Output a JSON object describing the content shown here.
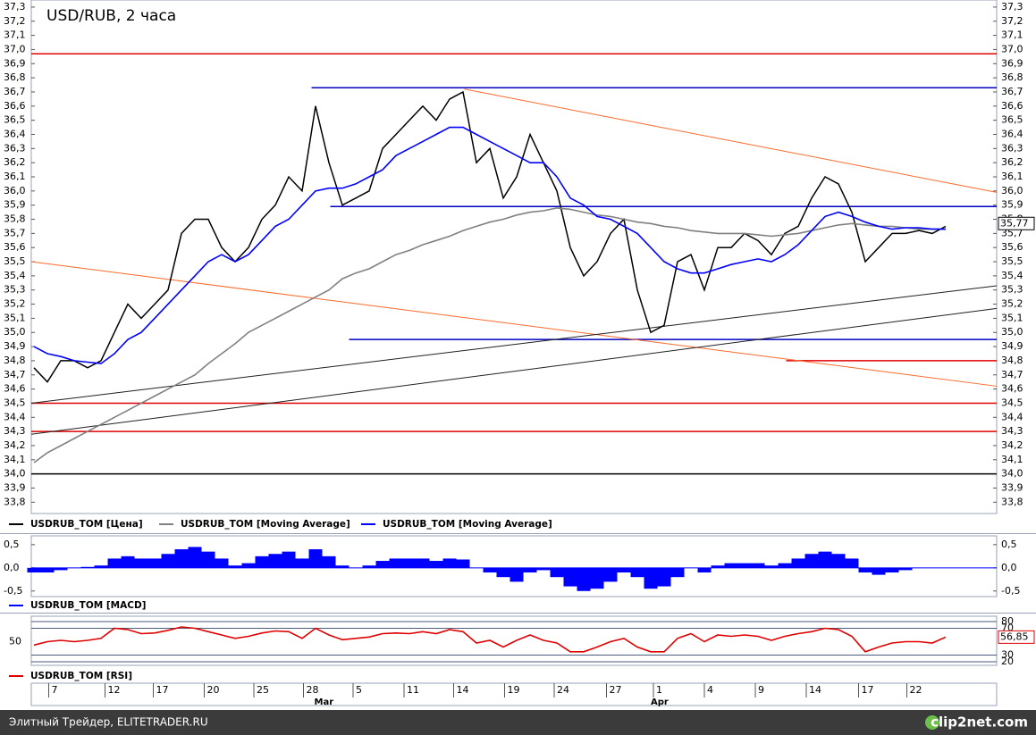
{
  "chart_data": [
    {
      "type": "line",
      "title": "USD/RUB, 2 часа",
      "xlim": [
        -0.2,
        71.8
      ],
      "ylim": [
        33.72,
        37.35
      ],
      "yticks": [
        {
          "value": 33.8,
          "label": "33,8"
        },
        {
          "value": 33.9,
          "label": "33,9"
        },
        {
          "value": 34.0,
          "label": "34,0"
        },
        {
          "value": 34.1,
          "label": "34,1"
        },
        {
          "value": 34.2,
          "label": "34,2"
        },
        {
          "value": 34.3,
          "label": "34,3"
        },
        {
          "value": 34.4,
          "label": "34,4"
        },
        {
          "value": 34.5,
          "label": "34,5"
        },
        {
          "value": 34.6,
          "label": "34,6"
        },
        {
          "value": 34.7,
          "label": "34,7"
        },
        {
          "value": 34.8,
          "label": "34,8"
        },
        {
          "value": 34.9,
          "label": "34,9"
        },
        {
          "value": 35.0,
          "label": "35,0"
        },
        {
          "value": 35.1,
          "label": "35,1"
        },
        {
          "value": 35.2,
          "label": "35,2"
        },
        {
          "value": 35.3,
          "label": "35,3"
        },
        {
          "value": 35.4,
          "label": "35,4"
        },
        {
          "value": 35.5,
          "label": "35,5"
        },
        {
          "value": 35.6,
          "label": "35,6"
        },
        {
          "value": 35.7,
          "label": "35,7"
        },
        {
          "value": 35.8,
          "label": "35,8"
        },
        {
          "value": 35.9,
          "label": "35,9"
        },
        {
          "value": 36.0,
          "label": "36,0"
        },
        {
          "value": 36.1,
          "label": "36,1"
        },
        {
          "value": 36.2,
          "label": "36,2"
        },
        {
          "value": 36.3,
          "label": "36,3"
        },
        {
          "value": 36.4,
          "label": "36,4"
        },
        {
          "value": 36.5,
          "label": "36,5"
        },
        {
          "value": 36.6,
          "label": "36,6"
        },
        {
          "value": 36.7,
          "label": "36,7"
        },
        {
          "value": 36.8,
          "label": "36,8"
        },
        {
          "value": 36.9,
          "label": "36,9"
        },
        {
          "value": 37.0,
          "label": "37,0"
        },
        {
          "value": 37.1,
          "label": "37,1"
        },
        {
          "value": 37.2,
          "label": "37,2"
        },
        {
          "value": 37.3,
          "label": "37,3"
        }
      ],
      "series": [
        {
          "name": "USDRUB_TOM [Цена]",
          "color": "#000000",
          "values": [
            34.75,
            34.65,
            34.8,
            34.8,
            34.75,
            34.8,
            35.0,
            35.2,
            35.1,
            35.2,
            35.3,
            35.7,
            35.8,
            35.8,
            35.6,
            35.5,
            35.6,
            35.8,
            35.9,
            36.1,
            36.0,
            36.6,
            36.2,
            35.9,
            35.95,
            36.0,
            36.3,
            36.4,
            36.5,
            36.6,
            36.5,
            36.65,
            36.7,
            36.2,
            36.3,
            35.95,
            36.1,
            36.4,
            36.2,
            36.0,
            35.6,
            35.4,
            35.5,
            35.7,
            35.8,
            35.3,
            35.0,
            35.05,
            35.5,
            35.55,
            35.3,
            35.6,
            35.6,
            35.7,
            35.65,
            35.55,
            35.7,
            35.75,
            35.95,
            36.1,
            36.05,
            35.85,
            35.5,
            35.6,
            35.7,
            35.7,
            35.72,
            35.7,
            35.75
          ]
        },
        {
          "name": "USDRUB_TOM [Moving Average]",
          "color": "#808080",
          "values": [
            34.08,
            34.15,
            34.2,
            34.25,
            34.3,
            34.35,
            34.4,
            34.45,
            34.5,
            34.55,
            34.6,
            34.65,
            34.7,
            34.78,
            34.85,
            34.92,
            35.0,
            35.05,
            35.1,
            35.15,
            35.2,
            35.25,
            35.3,
            35.38,
            35.42,
            35.45,
            35.5,
            35.55,
            35.58,
            35.62,
            35.65,
            35.68,
            35.72,
            35.75,
            35.78,
            35.8,
            35.83,
            35.85,
            35.86,
            35.88,
            35.87,
            35.85,
            35.83,
            35.82,
            35.8,
            35.78,
            35.77,
            35.75,
            35.74,
            35.72,
            35.71,
            35.7,
            35.7,
            35.7,
            35.69,
            35.68,
            35.69,
            35.7,
            35.72,
            35.74,
            35.76,
            35.77,
            35.76,
            35.75,
            35.75,
            35.74,
            35.73,
            35.73,
            35.73
          ]
        },
        {
          "name": "USDRUB_TOM [Moving Average]",
          "color": "#0000ff",
          "values": [
            34.9,
            34.85,
            34.83,
            34.8,
            34.79,
            34.78,
            34.85,
            34.95,
            35.0,
            35.1,
            35.2,
            35.3,
            35.4,
            35.5,
            35.55,
            35.5,
            35.55,
            35.65,
            35.75,
            35.8,
            35.9,
            36.0,
            36.02,
            36.02,
            36.05,
            36.1,
            36.15,
            36.25,
            36.3,
            36.35,
            36.4,
            36.45,
            36.45,
            36.4,
            36.35,
            36.3,
            36.25,
            36.2,
            36.2,
            36.1,
            35.95,
            35.9,
            35.82,
            35.8,
            35.75,
            35.7,
            35.6,
            35.5,
            35.45,
            35.42,
            35.42,
            35.45,
            35.48,
            35.5,
            35.52,
            35.5,
            35.55,
            35.62,
            35.72,
            35.82,
            35.85,
            35.82,
            35.78,
            35.75,
            35.73,
            35.74,
            35.74,
            35.73,
            35.73
          ]
        }
      ],
      "last_label": {
        "value": 35.77,
        "label": "35,77"
      },
      "levels": [
        {
          "value": 36.97,
          "color": "#e00000",
          "from": -0.2
        },
        {
          "value": 36.73,
          "color": "#0000c0",
          "from": 20.7
        },
        {
          "value": 35.89,
          "color": "#0000c0",
          "from": 22.1
        },
        {
          "value": 34.95,
          "color": "#0000c0",
          "from": 23.5
        },
        {
          "value": 34.8,
          "color": "#e00000",
          "from": 56.1
        },
        {
          "value": 34.5,
          "color": "#e00000",
          "from": -0.2
        },
        {
          "value": 34.3,
          "color": "#e00000",
          "from": -0.2
        },
        {
          "value": 34.0,
          "color": "#000000",
          "from": -0.2
        }
      ],
      "trend_lines": [
        {
          "x": [
            -0.2,
            71.8
          ],
          "y": [
            35.5,
            34.62
          ],
          "color": "#ff6a2a"
        },
        {
          "x": [
            32.1,
            71.8
          ],
          "y": [
            36.72,
            35.99
          ],
          "color": "#ff6a2a"
        },
        {
          "x": [
            -0.2,
            71.8
          ],
          "y": [
            34.5,
            35.33
          ],
          "color": "#202020"
        },
        {
          "x": [
            -0.2,
            71.8
          ],
          "y": [
            34.28,
            35.17
          ],
          "color": "#202020"
        }
      ]
    },
    {
      "type": "bar",
      "xlim": [
        -0.2,
        71.8
      ],
      "ylim": [
        -0.62,
        0.69
      ],
      "yticks": [
        {
          "value": 0.5,
          "label": "0,5"
        },
        {
          "value": 0,
          "label": "0,0"
        },
        {
          "value": -0.5,
          "label": "-0,5"
        }
      ],
      "series": [
        {
          "name": "USDRUB_TOM [MACD]",
          "color": "#0000ff",
          "values": [
            -0.1,
            -0.1,
            -0.05,
            0.0,
            0.02,
            0.05,
            0.2,
            0.25,
            0.2,
            0.2,
            0.3,
            0.4,
            0.45,
            0.35,
            0.2,
            0.05,
            0.1,
            0.25,
            0.3,
            0.35,
            0.2,
            0.4,
            0.25,
            0.05,
            0.0,
            0.05,
            0.15,
            0.2,
            0.2,
            0.2,
            0.15,
            0.2,
            0.18,
            0.0,
            -0.1,
            -0.2,
            -0.3,
            -0.1,
            -0.05,
            -0.2,
            -0.4,
            -0.5,
            -0.45,
            -0.3,
            -0.1,
            -0.2,
            -0.45,
            -0.4,
            -0.2,
            0.0,
            -0.1,
            0.05,
            0.1,
            0.1,
            0.1,
            0.05,
            0.1,
            0.2,
            0.3,
            0.35,
            0.3,
            0.2,
            -0.1,
            -0.15,
            -0.1,
            -0.05,
            0.0,
            0.0,
            0.0
          ]
        }
      ]
    },
    {
      "type": "line",
      "xlim": [
        -0.2,
        71.8
      ],
      "ylim": [
        14.7,
        88
      ],
      "yticks": [
        20,
        30,
        70,
        80
      ],
      "center_tick": 50,
      "series": [
        {
          "name": "USDRUB_TOM [RSI]",
          "color": "#e00000",
          "values": [
            45,
            50,
            52,
            50,
            52,
            55,
            70,
            68,
            62,
            63,
            67,
            72,
            70,
            65,
            60,
            55,
            58,
            63,
            66,
            65,
            55,
            70,
            60,
            53,
            55,
            57,
            62,
            63,
            62,
            65,
            62,
            68,
            65,
            48,
            52,
            42,
            52,
            60,
            52,
            48,
            35,
            35,
            42,
            50,
            55,
            42,
            35,
            35,
            55,
            62,
            50,
            60,
            58,
            60,
            58,
            52,
            58,
            62,
            65,
            70,
            68,
            58,
            35,
            42,
            48,
            50,
            50,
            48,
            57
          ]
        }
      ],
      "last_label": {
        "value": 56.85,
        "label": "56,85"
      },
      "xticks": [
        {
          "value": 1.1,
          "label": "7"
        },
        {
          "value": 5.3,
          "label": "12"
        },
        {
          "value": 8.9,
          "label": "17"
        },
        {
          "value": 12.7,
          "label": "20"
        },
        {
          "value": 16.4,
          "label": "25"
        },
        {
          "value": 20.1,
          "label": "28"
        },
        {
          "value": 23.8,
          "label": "5"
        },
        {
          "value": 27.6,
          "label": "11"
        },
        {
          "value": 31.3,
          "label": "14"
        },
        {
          "value": 35.1,
          "label": "19"
        },
        {
          "value": 38.8,
          "label": "24"
        },
        {
          "value": 42.7,
          "label": "27"
        },
        {
          "value": 46.2,
          "label": "1"
        },
        {
          "value": 50.0,
          "label": "4"
        },
        {
          "value": 53.8,
          "label": "9"
        },
        {
          "value": 57.6,
          "label": "14"
        },
        {
          "value": 61.5,
          "label": "17"
        },
        {
          "value": 65.1,
          "label": "22"
        }
      ],
      "month_labels": [
        {
          "value": 20.9,
          "label": "Mar"
        },
        {
          "value": 46.0,
          "label": "Apr"
        }
      ]
    }
  ],
  "footer": {
    "left": "Элитный Трейдер, ELITETRADER.RU",
    "logo": "clip2net.com"
  }
}
